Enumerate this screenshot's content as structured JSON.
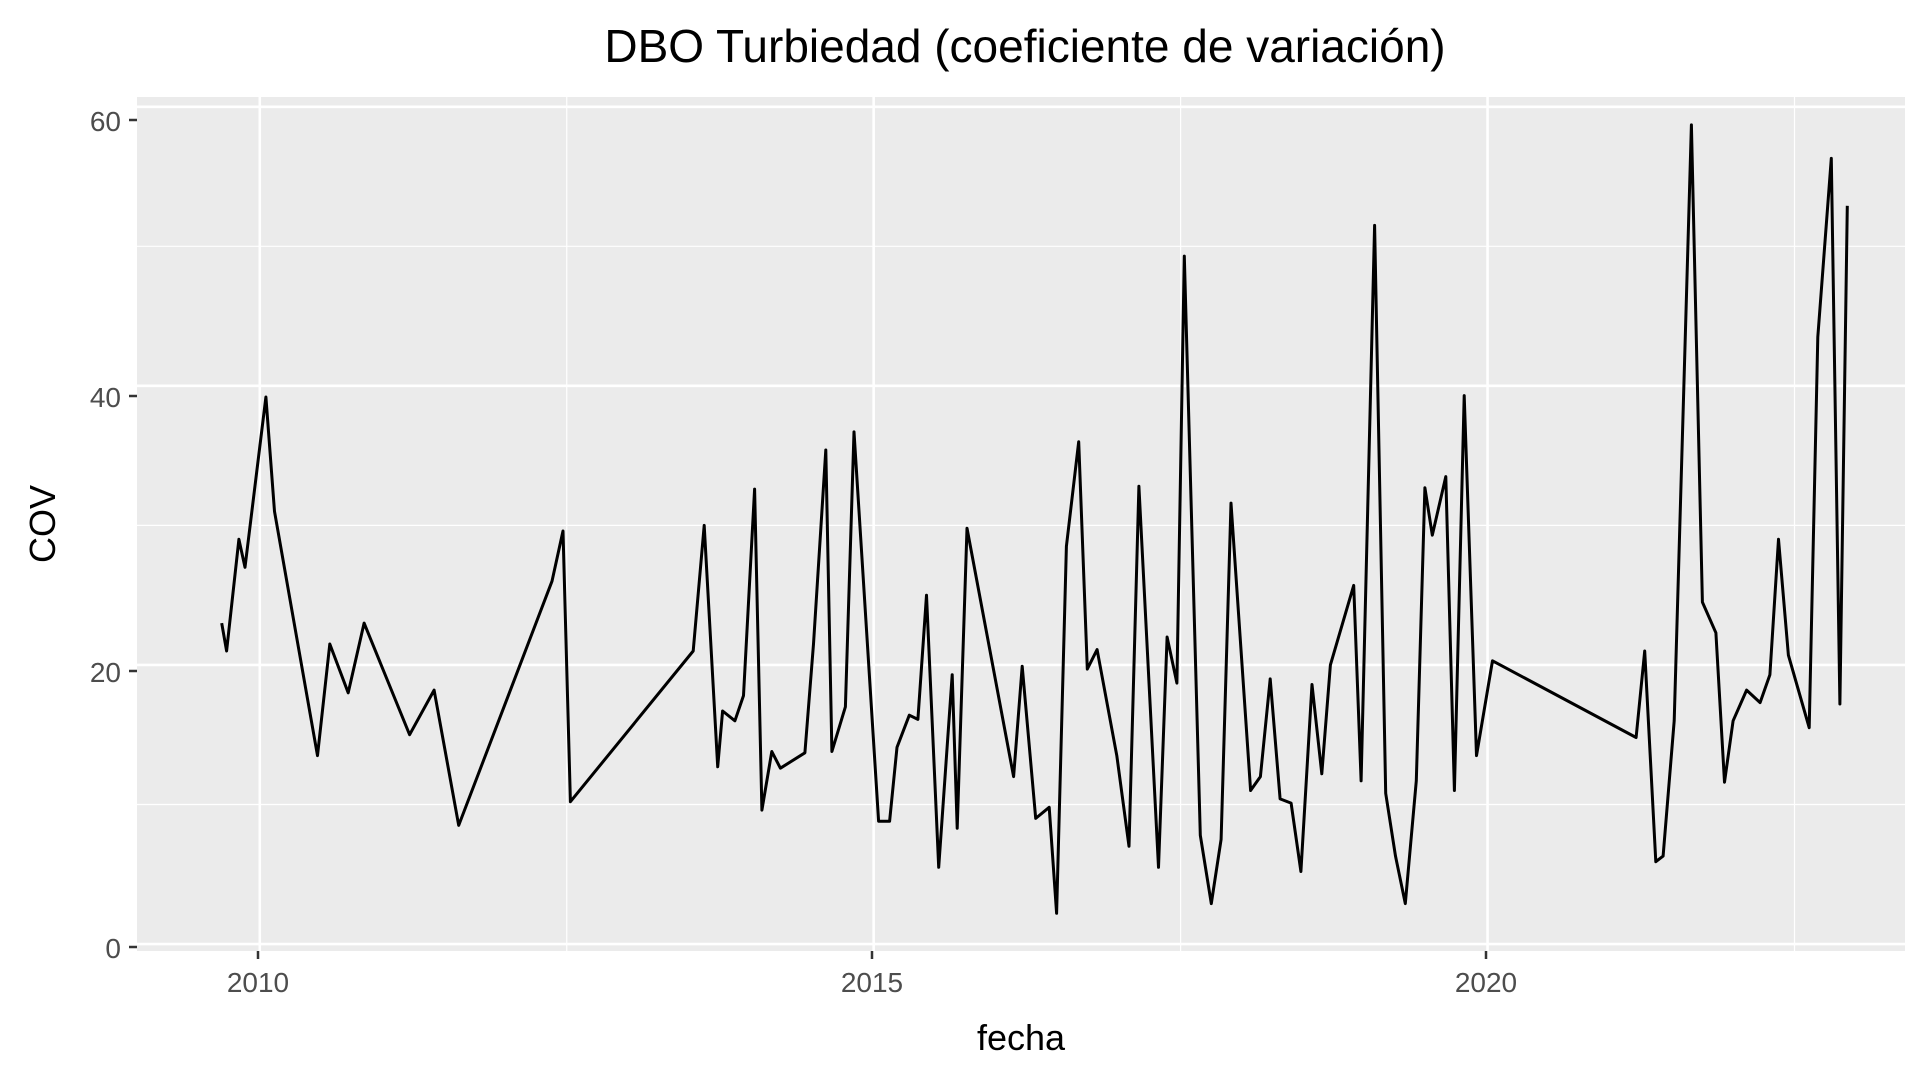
{
  "chart_data": {
    "type": "line",
    "title": "DBO Turbiedad (coeficiente de variación)",
    "xlabel": "fecha",
    "ylabel": "COV",
    "x_ticks": [
      "2010",
      "2015",
      "2020"
    ],
    "y_ticks": [
      "0",
      "20",
      "40",
      "60"
    ],
    "xlim": [
      2009.0,
      2023.4
    ],
    "ylim": [
      -0.5,
      60.7
    ],
    "grid": true,
    "legend": "none",
    "colors": {
      "panel": "#ebebeb",
      "grid": "#ffffff",
      "line": "#000000",
      "tick_text": "#4d4d4d",
      "text": "#000000"
    },
    "series": [
      {
        "x": [
          2009.69,
          2009.73,
          2009.83,
          2009.88,
          2010.05,
          2010.12,
          2010.3,
          2010.47,
          2010.57,
          2010.72,
          2010.85,
          2011.22,
          2011.42,
          2011.62,
          2012.38,
          2012.47,
          2012.53,
          2013.53,
          2013.62,
          2013.73,
          2013.77,
          2013.87,
          2013.94,
          2014.03,
          2014.09,
          2014.17,
          2014.24,
          2014.44,
          2014.51,
          2014.61,
          2014.66,
          2014.77,
          2014.84,
          2015.04,
          2015.13,
          2015.19,
          2015.29,
          2015.36,
          2015.43,
          2015.53,
          2015.64,
          2015.68,
          2015.76,
          2016.14,
          2016.21,
          2016.32,
          2016.43,
          2016.49,
          2016.57,
          2016.67,
          2016.74,
          2016.82,
          2016.98,
          2017.08,
          2017.16,
          2017.32,
          2017.39,
          2017.47,
          2017.53,
          2017.66,
          2017.75,
          2017.83,
          2017.91,
          2018.07,
          2018.15,
          2018.23,
          2018.31,
          2018.4,
          2018.48,
          2018.57,
          2018.65,
          2018.72,
          2018.91,
          2018.97,
          2019.08,
          2019.17,
          2019.25,
          2019.33,
          2019.42,
          2019.49,
          2019.55,
          2019.66,
          2019.73,
          2019.81,
          2019.91,
          2020.04,
          2021.21,
          2021.28,
          2021.37,
          2021.43,
          2021.52,
          2021.66,
          2021.75,
          2021.86,
          2021.93,
          2022.0,
          2022.06,
          2022.11,
          2022.22,
          2022.3,
          2022.37,
          2022.45,
          2022.62,
          2022.69,
          2022.8,
          2022.87,
          2022.93
        ],
        "y": [
          23.0,
          21.0,
          29.0,
          27.0,
          39.2,
          31.0,
          22.0,
          13.5,
          21.5,
          18.0,
          23.0,
          15.0,
          18.2,
          8.5,
          26.0,
          29.6,
          10.2,
          21.0,
          30.0,
          12.7,
          16.7,
          16.0,
          17.8,
          32.6,
          9.6,
          13.8,
          12.6,
          13.7,
          21.5,
          35.4,
          13.8,
          17.0,
          36.7,
          8.8,
          8.8,
          14.1,
          16.4,
          16.1,
          25.0,
          5.5,
          19.3,
          8.3,
          29.8,
          12.0,
          19.9,
          9.0,
          9.8,
          2.2,
          28.5,
          36.0,
          19.7,
          21.1,
          13.5,
          7.0,
          32.8,
          5.5,
          22.0,
          18.7,
          49.3,
          7.8,
          2.9,
          7.5,
          31.6,
          11.0,
          12.0,
          19.0,
          10.4,
          10.1,
          5.2,
          18.6,
          12.2,
          20.0,
          25.7,
          11.7,
          51.5,
          10.8,
          6.3,
          2.9,
          11.7,
          32.7,
          29.3,
          33.5,
          11.0,
          39.3,
          13.5,
          20.3,
          14.8,
          21.0,
          5.9,
          6.3,
          16.0,
          58.7,
          24.5,
          22.3,
          11.6,
          16.0,
          17.2,
          18.2,
          17.3,
          19.3,
          29.0,
          20.7,
          15.5,
          43.5,
          56.3,
          17.2,
          52.9
        ]
      }
    ]
  }
}
